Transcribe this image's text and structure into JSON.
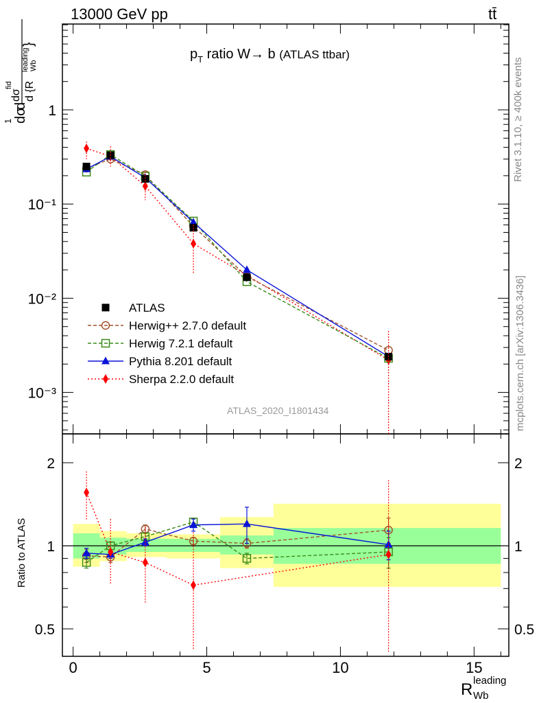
{
  "header": {
    "energy_label": "13000 GeV pp",
    "process_label": "tt̄"
  },
  "side_text": {
    "rivet": "Rivet 3.1.10, ≥ 400k events",
    "mcplots": "mcplots.cern.ch [arXiv:1306.3436]"
  },
  "main_panel": {
    "title_part1": "p",
    "title_sub": "T",
    "title_part2": " ratio W→ b ",
    "title_part3": "(ATLAS ttbar)",
    "analysis_id": "ATLAS_2020_I1801434",
    "ylabel_part1": "dσ",
    "ylabel_part2": "1",
    "ylabel_part3": "d",
    "ylabel_part4": "dσ",
    "ylabel_sup": "fid",
    "ylabel_part5": "d {R",
    "ylabel_sub_sup": "leading",
    "ylabel_sub": "Wb",
    "ylabel_close": "}",
    "y_tick_labels": [
      "10⁻³",
      "10⁻²",
      "10⁻¹",
      "1"
    ],
    "yscale": "log"
  },
  "ratio_panel": {
    "ylabel": "Ratio to ATLAS",
    "y_tick_labels": [
      "0.5",
      "1",
      "2"
    ]
  },
  "x_axis": {
    "tick_labels": [
      "0",
      "5",
      "10",
      "15"
    ],
    "label_main": "R",
    "label_sup": "leading",
    "label_sub": "Wb"
  },
  "colors": {
    "data": "#000000",
    "herwigpp": "#a0522d",
    "herwig7": "#3a8a1a",
    "pythia": "#0a14d8",
    "sherpa": "#ff0000",
    "band_stat": "#99ff99",
    "band_total": "#ffff99"
  },
  "chart_data": [
    {
      "type": "line",
      "yscale": "log",
      "xlim": [
        -0.4,
        16.3
      ],
      "ylim": [
        0.0003,
        8
      ],
      "bin_edges": [
        0,
        1,
        2,
        3.5,
        5.5,
        7.5,
        16
      ],
      "x": [
        0.5,
        1.4,
        2.7,
        4.5,
        6.5,
        11.8
      ],
      "legend": [
        {
          "name": "ATLAS",
          "marker": "square-filled"
        },
        {
          "name": "Herwig++ 2.7.0 default",
          "marker": "circle-open"
        },
        {
          "name": "Herwig 7.2.1 default",
          "marker": "square-open"
        },
        {
          "name": "Pythia 8.201 default",
          "marker": "triangle-filled"
        },
        {
          "name": "Sherpa 2.2.0 default",
          "marker": "diamond-filled"
        }
      ],
      "series": [
        {
          "name": "ATLAS",
          "values": [
            0.25,
            0.33,
            0.185,
            0.056,
            0.0167,
            0.0024
          ]
        },
        {
          "name": "Herwig++ 2.7.0 default",
          "values": [
            0.24,
            0.3,
            0.205,
            0.058,
            0.017,
            0.0028
          ]
        },
        {
          "name": "Herwig 7.2.1 default",
          "values": [
            0.218,
            0.335,
            0.198,
            0.066,
            0.015,
            0.0023
          ]
        },
        {
          "name": "Pythia 8.201 default",
          "values": [
            0.235,
            0.32,
            0.19,
            0.064,
            0.02,
            0.0024
          ]
        },
        {
          "name": "Sherpa 2.2.0 default",
          "values": [
            0.39,
            0.32,
            0.155,
            0.038,
            0.0175,
            0.0022
          ]
        }
      ]
    },
    {
      "type": "line",
      "ylabel": "Ratio to ATLAS",
      "yscale": "log",
      "ylim": [
        0.42,
        2.5
      ],
      "x": [
        0.5,
        1.4,
        2.7,
        4.5,
        6.5,
        11.8
      ],
      "bands": {
        "bin_edges": [
          0,
          1,
          2,
          3.5,
          5.5,
          7.5,
          16
        ],
        "stat_low": [
          0.9,
          0.93,
          0.95,
          0.95,
          0.93,
          0.86
        ],
        "stat_high": [
          1.11,
          1.07,
          1.06,
          1.06,
          1.09,
          1.16
        ],
        "total_low": [
          0.84,
          0.88,
          0.91,
          0.9,
          0.83,
          0.71
        ],
        "total_high": [
          1.2,
          1.13,
          1.11,
          1.1,
          1.27,
          1.42
        ]
      },
      "series": [
        {
          "name": "Herwig++ 2.7.0 default",
          "values": [
            0.92,
            0.91,
            1.15,
            1.04,
            1.02,
            1.14
          ],
          "err": [
            0.05,
            0.04,
            0.04,
            0.03,
            0.04,
            0.12
          ]
        },
        {
          "name": "Herwig 7.2.1 default",
          "values": [
            0.87,
            1.0,
            1.08,
            1.22,
            0.9,
            0.95
          ],
          "err": [
            0.04,
            0.03,
            0.03,
            0.04,
            0.04,
            0.12
          ]
        },
        {
          "name": "Pythia 8.201 default",
          "values": [
            0.94,
            0.93,
            1.03,
            1.19,
            1.2,
            1.01
          ],
          "err": [
            0.04,
            0.03,
            0.03,
            0.06,
            0.18,
            0.12
          ]
        },
        {
          "name": "Sherpa 2.2.0 default",
          "values": [
            1.56,
            0.95,
            0.87,
            0.72,
            null,
            0.93
          ],
          "err_low": [
            0.32,
            0.22,
            0.25,
            0.3,
            null,
            0.52
          ],
          "err_high": [
            0.3,
            0.3,
            0.3,
            0.4,
            null,
            0.8
          ]
        }
      ]
    }
  ]
}
